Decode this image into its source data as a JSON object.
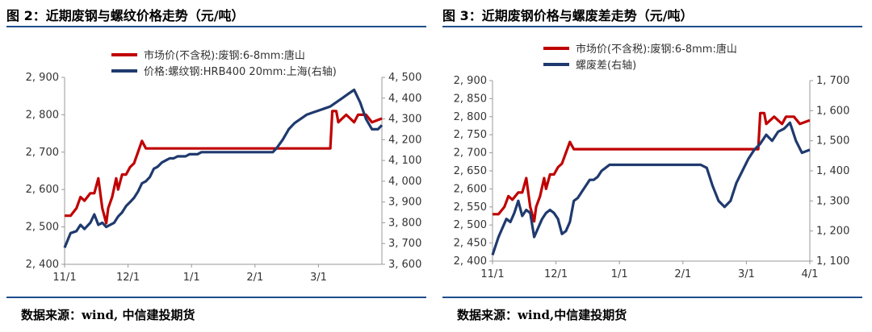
{
  "chart_data": [
    {
      "type": "line",
      "title": "图 2：近期废钢与螺纹价格走势（元/吨）",
      "source": "数据来源：wind, 中信建投期货",
      "xlabel": "",
      "ylabel": "",
      "x_ticks": [
        "11/1",
        "12/1",
        "1/1",
        "2/1",
        "3/1"
      ],
      "x_range": [
        0,
        160
      ],
      "y_ticks": [
        "2, 400",
        "2, 500",
        "2, 600",
        "2, 700",
        "2, 800",
        "2, 900"
      ],
      "ylim": [
        2400,
        2900
      ],
      "y2_ticks": [
        "3, 600",
        "3, 700",
        "3, 800",
        "3, 900",
        "4, 000",
        "4, 100",
        "4, 200",
        "4, 300",
        "4, 400",
        "4, 500"
      ],
      "y2lim": [
        3600,
        4500
      ],
      "legend_position": "top-center",
      "grid": false,
      "series": [
        {
          "name": "市场价(不含税):废钢:6-8mm:唐山",
          "color": "#c00000",
          "axis": "left",
          "x": [
            0,
            3,
            6,
            8,
            10,
            13,
            15,
            17,
            19,
            21,
            22,
            24,
            26,
            27,
            29,
            31,
            33,
            35,
            37,
            39,
            41,
            43,
            45,
            47,
            49,
            51,
            53,
            55,
            57,
            59,
            61,
            63,
            65,
            67,
            69,
            71,
            73,
            75,
            80,
            90,
            100,
            110,
            115,
            120,
            125,
            130,
            134,
            135,
            137,
            138,
            140,
            142,
            144,
            146,
            148,
            150,
            152,
            155,
            160
          ],
          "y": [
            2530,
            2530,
            2550,
            2580,
            2570,
            2590,
            2590,
            2630,
            2550,
            2510,
            2550,
            2580,
            2630,
            2600,
            2640,
            2640,
            2660,
            2670,
            2700,
            2730,
            2710,
            2710,
            2710,
            2710,
            2710,
            2710,
            2710,
            2710,
            2710,
            2710,
            2710,
            2710,
            2710,
            2710,
            2710,
            2710,
            2710,
            2710,
            2710,
            2710,
            2710,
            2710,
            2710,
            2710,
            2710,
            2710,
            2710,
            2810,
            2810,
            2780,
            2790,
            2800,
            2790,
            2780,
            2800,
            2800,
            2800,
            2780,
            2790
          ]
        },
        {
          "name": "价格:螺纹钢:HRB400 20mm:上海(右轴)",
          "color": "#1f3a6e",
          "axis": "right",
          "x": [
            0,
            3,
            6,
            8,
            10,
            13,
            15,
            17,
            19,
            21,
            23,
            25,
            27,
            29,
            31,
            33,
            35,
            37,
            39,
            41,
            43,
            45,
            47,
            49,
            51,
            53,
            55,
            57,
            59,
            61,
            63,
            65,
            67,
            69,
            71,
            73,
            75,
            77,
            79,
            81,
            83,
            85,
            87,
            89,
            91,
            93,
            95,
            97,
            99,
            101,
            103,
            105,
            107,
            110,
            113,
            116,
            119,
            122,
            125,
            128,
            131,
            134,
            137,
            140,
            143,
            146,
            149,
            152,
            155,
            158,
            160
          ],
          "y": [
            3680,
            3750,
            3760,
            3790,
            3770,
            3800,
            3840,
            3790,
            3800,
            3780,
            3790,
            3800,
            3830,
            3850,
            3880,
            3900,
            3920,
            3950,
            3990,
            4000,
            4020,
            4060,
            4070,
            4090,
            4100,
            4110,
            4110,
            4120,
            4120,
            4120,
            4130,
            4130,
            4130,
            4140,
            4140,
            4140,
            4140,
            4140,
            4140,
            4140,
            4140,
            4140,
            4140,
            4140,
            4140,
            4140,
            4140,
            4140,
            4140,
            4140,
            4140,
            4140,
            4160,
            4200,
            4250,
            4280,
            4300,
            4320,
            4330,
            4340,
            4350,
            4360,
            4380,
            4400,
            4420,
            4440,
            4380,
            4300,
            4250,
            4250,
            4270
          ]
        }
      ]
    },
    {
      "type": "line",
      "title": "图 3：近期废钢价格与螺废差走势（元/吨）",
      "source": "数据来源：wind,中信建投期货",
      "xlabel": "",
      "ylabel": "",
      "x_ticks": [
        "11/1",
        "12/1",
        "1/1",
        "2/1",
        "3/1",
        "4/1"
      ],
      "x_range": [
        0,
        160
      ],
      "y_ticks": [
        "2, 400",
        "2, 450",
        "2, 500",
        "2, 550",
        "2, 600",
        "2, 650",
        "2, 700",
        "2, 750",
        "2, 800",
        "2, 850",
        "2, 900"
      ],
      "ylim": [
        2400,
        2900
      ],
      "y2_ticks": [
        "1, 100",
        "1, 200",
        "1, 300",
        "1, 400",
        "1, 500",
        "1, 600",
        "1, 700"
      ],
      "y2lim": [
        1100,
        1700
      ],
      "legend_position": "top-center",
      "grid": false,
      "series": [
        {
          "name": "市场价(不含税):废钢:6-8mm:唐山",
          "color": "#c00000",
          "axis": "left",
          "x": [
            0,
            3,
            6,
            8,
            10,
            13,
            15,
            17,
            19,
            21,
            22,
            24,
            26,
            27,
            29,
            31,
            33,
            35,
            37,
            39,
            41,
            43,
            45,
            47,
            49,
            51,
            53,
            55,
            57,
            59,
            61,
            63,
            65,
            67,
            69,
            71,
            73,
            75,
            80,
            90,
            100,
            110,
            115,
            120,
            125,
            130,
            134,
            135,
            137,
            138,
            140,
            142,
            144,
            146,
            148,
            150,
            152,
            155,
            160
          ],
          "y": [
            2530,
            2530,
            2550,
            2580,
            2570,
            2590,
            2590,
            2630,
            2550,
            2510,
            2550,
            2580,
            2630,
            2600,
            2640,
            2640,
            2660,
            2670,
            2700,
            2730,
            2710,
            2710,
            2710,
            2710,
            2710,
            2710,
            2710,
            2710,
            2710,
            2710,
            2710,
            2710,
            2710,
            2710,
            2710,
            2710,
            2710,
            2710,
            2710,
            2710,
            2710,
            2710,
            2710,
            2710,
            2710,
            2710,
            2710,
            2810,
            2810,
            2780,
            2790,
            2800,
            2790,
            2780,
            2800,
            2800,
            2800,
            2780,
            2790
          ]
        },
        {
          "name": "螺废差(右轴)",
          "color": "#1f3a6e",
          "axis": "right",
          "x": [
            0,
            3,
            5,
            7,
            9,
            11,
            13,
            15,
            17,
            19,
            21,
            23,
            25,
            27,
            29,
            31,
            33,
            35,
            37,
            39,
            41,
            43,
            45,
            47,
            49,
            51,
            53,
            55,
            57,
            59,
            61,
            63,
            65,
            67,
            69,
            71,
            73,
            75,
            78,
            81,
            84,
            87,
            90,
            93,
            96,
            99,
            102,
            105,
            108,
            111,
            114,
            117,
            120,
            123,
            126,
            129,
            132,
            135,
            138,
            141,
            144,
            147,
            150,
            153,
            156,
            160
          ],
          "y": [
            1120,
            1180,
            1210,
            1240,
            1230,
            1260,
            1300,
            1250,
            1270,
            1260,
            1180,
            1210,
            1240,
            1260,
            1270,
            1260,
            1240,
            1190,
            1200,
            1230,
            1300,
            1310,
            1330,
            1350,
            1370,
            1370,
            1380,
            1400,
            1410,
            1420,
            1420,
            1420,
            1420,
            1420,
            1420,
            1420,
            1420,
            1420,
            1420,
            1420,
            1420,
            1420,
            1420,
            1420,
            1420,
            1420,
            1420,
            1420,
            1410,
            1350,
            1300,
            1280,
            1300,
            1360,
            1400,
            1440,
            1470,
            1490,
            1520,
            1500,
            1530,
            1540,
            1560,
            1500,
            1460,
            1470
          ]
        }
      ]
    }
  ]
}
